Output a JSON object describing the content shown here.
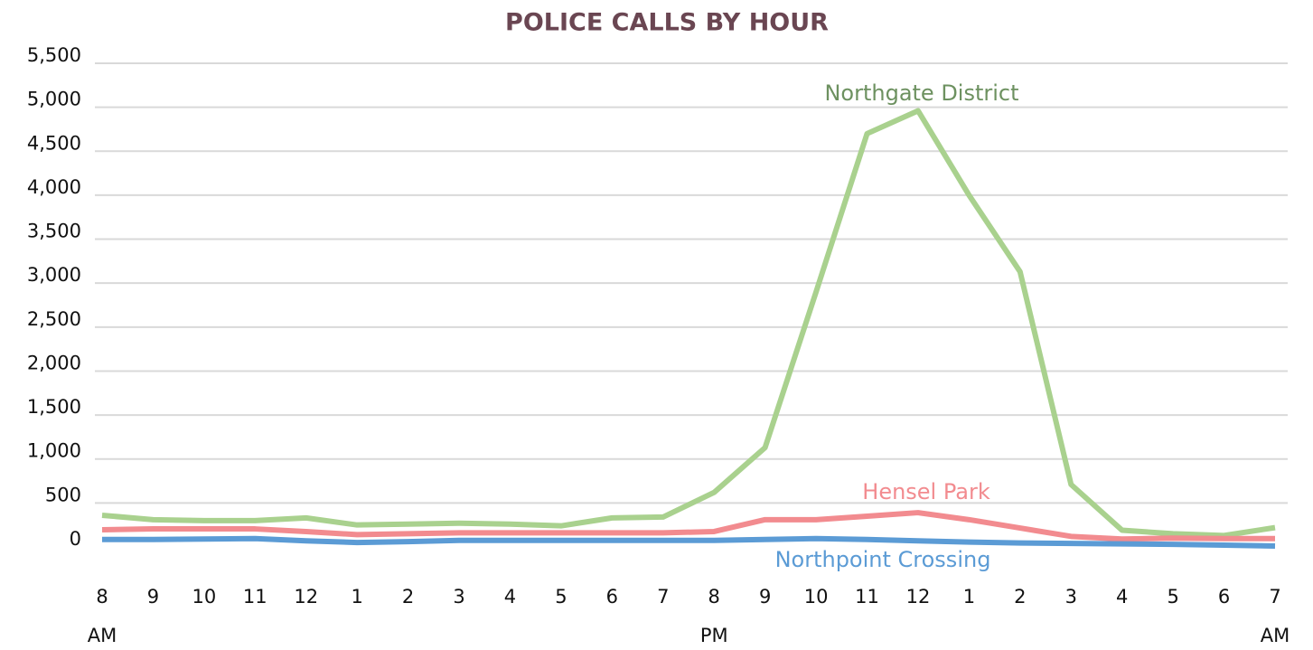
{
  "chart_data": {
    "type": "line",
    "title": "POLICE CALLS BY HOUR",
    "categories": [
      "8",
      "9",
      "10",
      "11",
      "12",
      "1",
      "2",
      "3",
      "4",
      "5",
      "6",
      "7",
      "8",
      "9",
      "10",
      "11",
      "12",
      "1",
      "2",
      "3",
      "4",
      "5",
      "6",
      "7"
    ],
    "category_periods": [
      "AM",
      null,
      null,
      null,
      null,
      null,
      null,
      null,
      null,
      null,
      null,
      null,
      "PM",
      null,
      null,
      null,
      null,
      null,
      null,
      null,
      null,
      null,
      null,
      "AM"
    ],
    "series": [
      {
        "name": "Northgate District",
        "color": "#a9d18e",
        "label_color": "#6d9160",
        "values": [
          360,
          310,
          300,
          300,
          330,
          250,
          260,
          270,
          260,
          240,
          330,
          340,
          620,
          1130,
          2900,
          4700,
          4960,
          4000,
          3130,
          710,
          190,
          150,
          130,
          220
        ]
      },
      {
        "name": "Hensel Park",
        "color": "#f28b8f",
        "label_color": "#f28b8f",
        "values": [
          195,
          205,
          205,
          205,
          175,
          140,
          150,
          160,
          160,
          160,
          160,
          160,
          175,
          310,
          310,
          350,
          390,
          310,
          215,
          120,
          90,
          100,
          95,
          95
        ]
      },
      {
        "name": "Northpoint Crossing",
        "color": "#5b9bd5",
        "label_color": "#5b9bd5",
        "values": [
          85,
          85,
          90,
          95,
          70,
          50,
          60,
          75,
          75,
          75,
          75,
          75,
          75,
          85,
          95,
          85,
          70,
          55,
          45,
          40,
          35,
          30,
          20,
          10
        ]
      }
    ],
    "ylim": [
      0,
      5500
    ],
    "yticks": [
      0,
      500,
      {
        "value": 1000,
        "label": "1,000"
      },
      {
        "value": 1500,
        "label": "1,500"
      },
      {
        "value": 2000,
        "label": "2,000"
      },
      {
        "value": 2500,
        "label": "2,500"
      },
      {
        "value": 3000,
        "label": "3,000"
      },
      {
        "value": 3500,
        "label": "3,500"
      },
      {
        "value": 4000,
        "label": "4,000"
      },
      {
        "value": 4500,
        "label": "4,500"
      },
      {
        "value": 5000,
        "label": "5,000"
      },
      {
        "value": 5500,
        "label": "5,500"
      }
    ],
    "grid": true
  }
}
